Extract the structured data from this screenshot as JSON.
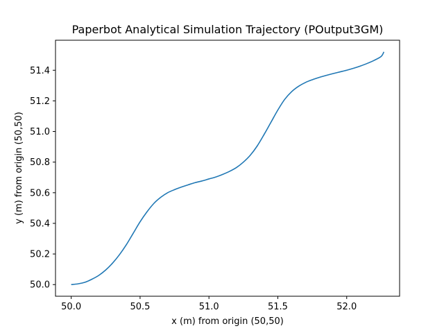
{
  "chart_data": {
    "type": "line",
    "title": "Paperbot Analytical Simulation Trajectory (POutput3GM)",
    "xlabel": "x (m) from origin (50,50)",
    "ylabel": "y (m) from origin (50,50)",
    "xlim": [
      49.886,
      52.384
    ],
    "ylim": [
      49.924,
      51.596
    ],
    "grid": false,
    "x_ticks": [
      {
        "value": 50.0,
        "label": "50.0"
      },
      {
        "value": 50.5,
        "label": "50.5"
      },
      {
        "value": 51.0,
        "label": "51.0"
      },
      {
        "value": 51.5,
        "label": "51.5"
      },
      {
        "value": 52.0,
        "label": "52.0"
      }
    ],
    "y_ticks": [
      {
        "value": 50.0,
        "label": "50.0"
      },
      {
        "value": 50.2,
        "label": "50.2"
      },
      {
        "value": 50.4,
        "label": "50.4"
      },
      {
        "value": 50.6,
        "label": "50.6"
      },
      {
        "value": 50.8,
        "label": "50.8"
      },
      {
        "value": 51.0,
        "label": "51.0"
      },
      {
        "value": 51.2,
        "label": "51.2"
      },
      {
        "value": 51.4,
        "label": "51.4"
      }
    ],
    "series": [
      {
        "color": "#1f77b4",
        "x": [
          50.0,
          50.05,
          50.1,
          50.15,
          50.2,
          50.25,
          50.3,
          50.35,
          50.4,
          50.45,
          50.5,
          50.55,
          50.6,
          50.65,
          50.7,
          50.75,
          50.8,
          50.85,
          50.9,
          50.95,
          51.0,
          51.05,
          51.1,
          51.15,
          51.2,
          51.25,
          51.3,
          51.35,
          51.4,
          51.45,
          51.5,
          51.55,
          51.6,
          51.65,
          51.7,
          51.75,
          51.8,
          51.85,
          51.9,
          51.95,
          52.0,
          52.05,
          52.1,
          52.15,
          52.2,
          52.25,
          52.27
        ],
        "y": [
          50.0,
          50.005,
          50.015,
          50.035,
          50.06,
          50.095,
          50.14,
          50.195,
          50.26,
          50.335,
          50.41,
          50.475,
          50.53,
          50.57,
          50.6,
          50.62,
          50.637,
          50.652,
          50.666,
          50.677,
          50.69,
          50.703,
          50.72,
          50.74,
          50.765,
          50.8,
          50.845,
          50.905,
          50.98,
          51.06,
          51.14,
          51.21,
          51.26,
          51.295,
          51.32,
          51.338,
          51.353,
          51.366,
          51.378,
          51.389,
          51.4,
          51.413,
          51.428,
          51.445,
          51.465,
          51.49,
          51.52
        ]
      }
    ]
  }
}
